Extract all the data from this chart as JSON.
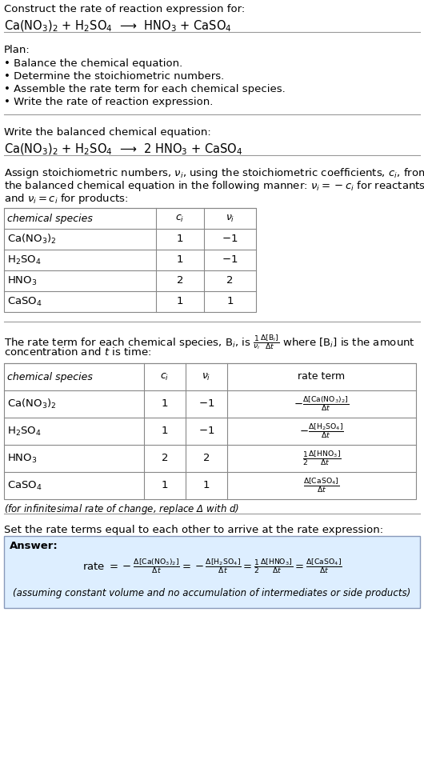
{
  "title_line1": "Construct the rate of reaction expression for:",
  "title_line2": "Ca(NO$_3$)$_2$ + H$_2$SO$_4$  ⟶  HNO$_3$ + CaSO$_4$",
  "plan_header": "Plan:",
  "plan_items": [
    "• Balance the chemical equation.",
    "• Determine the stoichiometric numbers.",
    "• Assemble the rate term for each chemical species.",
    "• Write the rate of reaction expression."
  ],
  "balanced_header": "Write the balanced chemical equation:",
  "balanced_eq": "Ca(NO$_3$)$_2$ + H$_2$SO$_4$  ⟶  2 HNO$_3$ + CaSO$_4$",
  "stoich_intro_lines": [
    "Assign stoichiometric numbers, $\\nu_i$, using the stoichiometric coefficients, $c_i$, from",
    "the balanced chemical equation in the following manner: $\\nu_i = -c_i$ for reactants",
    "and $\\nu_i = c_i$ for products:"
  ],
  "table1_headers": [
    "chemical species",
    "$c_i$",
    "$\\nu_i$"
  ],
  "table1_data": [
    [
      "Ca(NO$_3$)$_2$",
      "1",
      "$-1$"
    ],
    [
      "H$_2$SO$_4$",
      "1",
      "$-1$"
    ],
    [
      "HNO$_3$",
      "2",
      "2"
    ],
    [
      "CaSO$_4$",
      "1",
      "1"
    ]
  ],
  "rate_intro_lines": [
    "The rate term for each chemical species, B$_i$, is $\\frac{1}{\\nu_i}\\frac{\\Delta[\\mathrm{B}_i]}{\\Delta t}$ where [B$_i$] is the amount",
    "concentration and $t$ is time:"
  ],
  "table2_headers": [
    "chemical species",
    "$c_i$",
    "$\\nu_i$",
    "rate term"
  ],
  "table2_data": [
    [
      "Ca(NO$_3$)$_2$",
      "1",
      "$-1$",
      "$-\\frac{\\Delta[\\mathrm{Ca(NO_3)_2}]}{\\Delta t}$"
    ],
    [
      "H$_2$SO$_4$",
      "1",
      "$-1$",
      "$-\\frac{\\Delta[\\mathrm{H_2SO_4}]}{\\Delta t}$"
    ],
    [
      "HNO$_3$",
      "2",
      "2",
      "$\\frac{1}{2}\\frac{\\Delta[\\mathrm{HNO_3}]}{\\Delta t}$"
    ],
    [
      "CaSO$_4$",
      "1",
      "1",
      "$\\frac{\\Delta[\\mathrm{CaSO_4}]}{\\Delta t}$"
    ]
  ],
  "infinitesimal_note": "(for infinitesimal rate of change, replace Δ with $d$)",
  "set_rate_text": "Set the rate terms equal to each other to arrive at the rate expression:",
  "answer_label": "Answer:",
  "rate_expression": "rate $= -\\frac{\\Delta[\\mathrm{Ca(NO_3)_2}]}{\\Delta t} = -\\frac{\\Delta[\\mathrm{H_2SO_4}]}{\\Delta t} = \\frac{1}{2}\\frac{\\Delta[\\mathrm{HNO_3}]}{\\Delta t} = \\frac{\\Delta[\\mathrm{CaSO_4}]}{\\Delta t}$",
  "assuming_note": "(assuming constant volume and no accumulation of intermediates or side products)",
  "bg_color": "#ffffff",
  "answer_bg_color": "#ddeeff",
  "table_border_color": "#888888",
  "sep_color": "#999999",
  "font_size": 9.5,
  "mono_font": "DejaVu Sans Mono"
}
